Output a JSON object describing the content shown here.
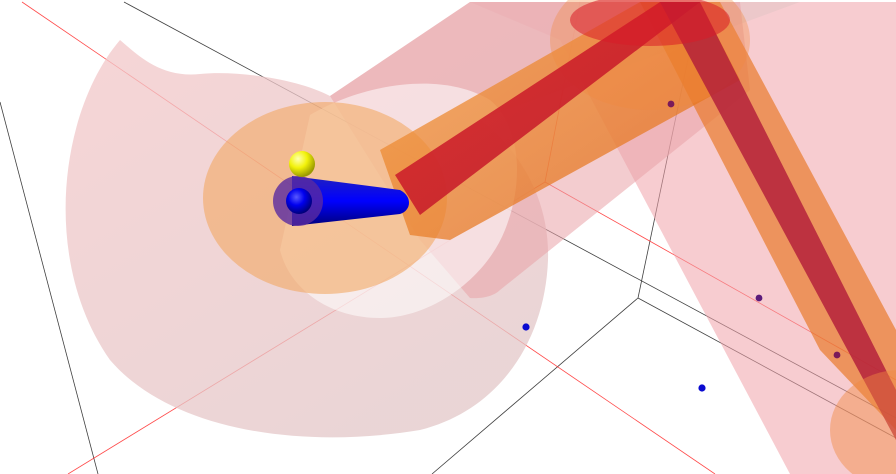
{
  "viewer": {
    "label": "",
    "background": "#ffffff",
    "colors": {
      "grid_black": "#000000",
      "grid_red": "#ff2a2a",
      "tube_outer": "#f3a0a6",
      "tube_outer_alpha": 0.55,
      "tube_mid": "#f07a2a",
      "tube_inner": "#c71a2a",
      "blue_rod": "#0000ff",
      "yellow_sphere": "#f2f20a",
      "blue_point": "#0a0ad0",
      "purple_point": "#7a1a6a"
    },
    "legend": []
  }
}
